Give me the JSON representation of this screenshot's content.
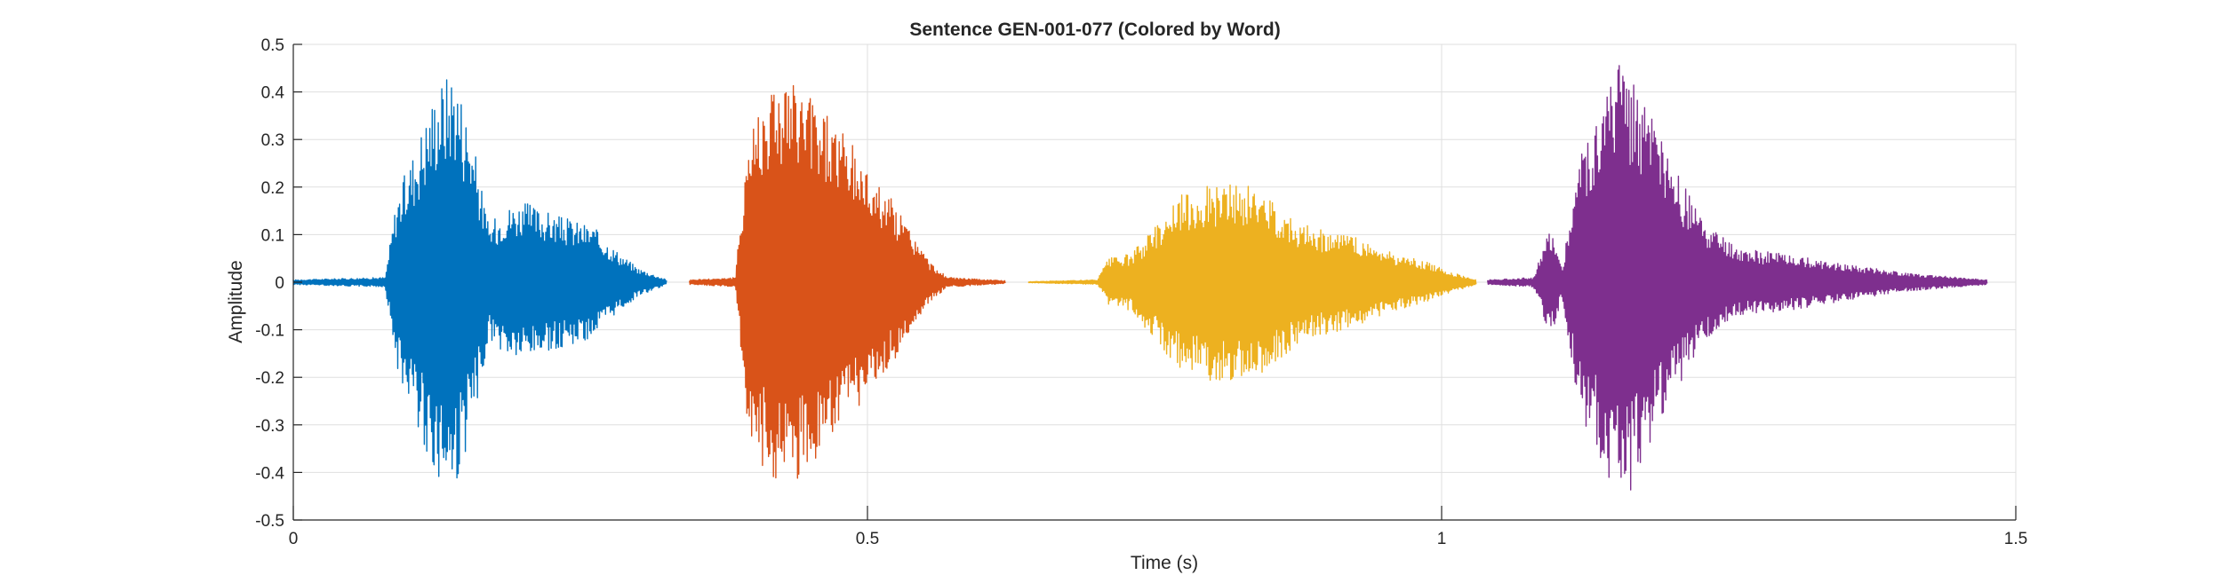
{
  "chart_data": {
    "type": "line",
    "title": "Sentence GEN-001-077 (Colored by Word)",
    "xlabel": "Time (s)",
    "ylabel": "Amplitude",
    "xlim": [
      0,
      1.5
    ],
    "ylim": [
      -0.5,
      0.5
    ],
    "xticks": [
      0,
      0.5,
      1,
      1.5
    ],
    "xtick_labels": [
      "0",
      "0.5",
      "1",
      "1.5"
    ],
    "yticks": [
      0.5,
      0.4,
      0.3,
      0.2,
      0.1,
      0,
      -0.1,
      -0.2,
      -0.3,
      -0.4,
      -0.5
    ],
    "ytick_labels": [
      "0.5",
      "0.4",
      "0.3",
      "0.2",
      "0.1",
      "0",
      "-0.1",
      "-0.2",
      "-0.3",
      "-0.4",
      "-0.5"
    ],
    "grid": true,
    "series": [
      {
        "color": "#0072BD",
        "time_range": [
          0.0,
          0.325
        ],
        "envelope": [
          [
            0.0,
            0.005
          ],
          [
            0.08,
            0.01
          ],
          [
            0.09,
            0.18
          ],
          [
            0.105,
            0.28
          ],
          [
            0.125,
            0.42
          ],
          [
            0.14,
            0.46
          ],
          [
            0.155,
            0.32
          ],
          [
            0.17,
            0.12
          ],
          [
            0.185,
            0.16
          ],
          [
            0.2,
            0.17
          ],
          [
            0.23,
            0.14
          ],
          [
            0.26,
            0.12
          ],
          [
            0.28,
            0.07
          ],
          [
            0.3,
            0.03
          ],
          [
            0.325,
            0.005
          ]
        ]
      },
      {
        "color": "#D95319",
        "time_range": [
          0.345,
          0.62
        ],
        "envelope": [
          [
            0.345,
            0.005
          ],
          [
            0.385,
            0.01
          ],
          [
            0.395,
            0.3
          ],
          [
            0.405,
            0.38
          ],
          [
            0.42,
            0.44
          ],
          [
            0.45,
            0.4
          ],
          [
            0.47,
            0.35
          ],
          [
            0.5,
            0.24
          ],
          [
            0.52,
            0.18
          ],
          [
            0.54,
            0.1
          ],
          [
            0.555,
            0.04
          ],
          [
            0.57,
            0.01
          ],
          [
            0.62,
            0.003
          ]
        ]
      },
      {
        "color": "#EDB120",
        "time_range": [
          0.64,
          1.03
        ],
        "envelope": [
          [
            0.64,
            0.001
          ],
          [
            0.7,
            0.005
          ],
          [
            0.71,
            0.05
          ],
          [
            0.73,
            0.06
          ],
          [
            0.75,
            0.12
          ],
          [
            0.77,
            0.18
          ],
          [
            0.8,
            0.21
          ],
          [
            0.84,
            0.2
          ],
          [
            0.88,
            0.12
          ],
          [
            0.92,
            0.1
          ],
          [
            0.96,
            0.06
          ],
          [
            0.99,
            0.04
          ],
          [
            1.01,
            0.02
          ],
          [
            1.03,
            0.005
          ]
        ]
      },
      {
        "color": "#7E2F8E",
        "time_range": [
          1.04,
          1.475
        ],
        "envelope": [
          [
            1.04,
            0.005
          ],
          [
            1.08,
            0.01
          ],
          [
            1.095,
            0.12
          ],
          [
            1.105,
            0.03
          ],
          [
            1.12,
            0.28
          ],
          [
            1.14,
            0.38
          ],
          [
            1.155,
            0.48
          ],
          [
            1.17,
            0.42
          ],
          [
            1.2,
            0.25
          ],
          [
            1.23,
            0.12
          ],
          [
            1.26,
            0.07
          ],
          [
            1.3,
            0.06
          ],
          [
            1.35,
            0.04
          ],
          [
            1.4,
            0.02
          ],
          [
            1.44,
            0.012
          ],
          [
            1.475,
            0.005
          ]
        ]
      }
    ]
  }
}
